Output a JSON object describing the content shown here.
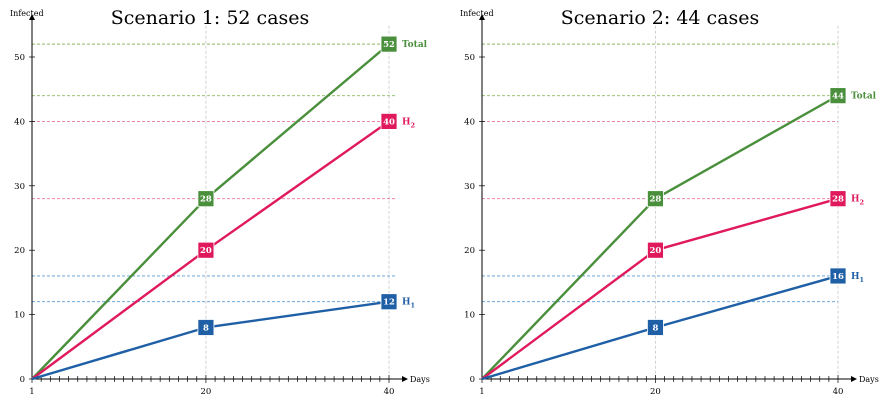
{
  "chart_data": [
    {
      "type": "line",
      "title": "Scenario 1: 52 cases",
      "xlabel": "Days",
      "ylabel": "Infected",
      "x": [
        1,
        20,
        40
      ],
      "xlim": [
        1,
        40
      ],
      "ylim": [
        0,
        55
      ],
      "x_ticks": [
        1,
        20,
        40
      ],
      "y_ticks": [
        0,
        10,
        20,
        30,
        40,
        50
      ],
      "series": [
        {
          "name": "Total",
          "values": [
            0,
            28,
            52
          ],
          "color": "#4a8f3c"
        },
        {
          "name": "H2",
          "values": [
            0,
            20,
            40
          ],
          "color": "#e0195d"
        },
        {
          "name": "H1",
          "values": [
            0,
            8,
            12
          ],
          "color": "#1f5fa6"
        }
      ],
      "reference_lines": [
        {
          "value": 52,
          "color": "#8db860"
        },
        {
          "value": 44,
          "color": "#8db860"
        },
        {
          "value": 40,
          "color": "#e8759a"
        },
        {
          "value": 28,
          "color": "#e8759a"
        },
        {
          "value": 16,
          "color": "#5a9bd5"
        },
        {
          "value": 12,
          "color": "#5a9bd5"
        }
      ]
    },
    {
      "type": "line",
      "title": "Scenario 2: 44 cases",
      "xlabel": "Days",
      "ylabel": "Infected",
      "x": [
        1,
        20,
        40
      ],
      "xlim": [
        1,
        40
      ],
      "ylim": [
        0,
        55
      ],
      "x_ticks": [
        1,
        20,
        40
      ],
      "y_ticks": [
        0,
        10,
        20,
        30,
        40,
        50
      ],
      "series": [
        {
          "name": "Total",
          "values": [
            0,
            28,
            44
          ],
          "color": "#4a8f3c"
        },
        {
          "name": "H2",
          "values": [
            0,
            20,
            28
          ],
          "color": "#e0195d"
        },
        {
          "name": "H1",
          "values": [
            0,
            8,
            16
          ],
          "color": "#1f5fa6"
        }
      ],
      "reference_lines": [
        {
          "value": 52,
          "color": "#8db860"
        },
        {
          "value": 44,
          "color": "#8db860"
        },
        {
          "value": 40,
          "color": "#e8759a"
        },
        {
          "value": 28,
          "color": "#e8759a"
        },
        {
          "value": 16,
          "color": "#5a9bd5"
        },
        {
          "value": 12,
          "color": "#5a9bd5"
        }
      ]
    }
  ]
}
